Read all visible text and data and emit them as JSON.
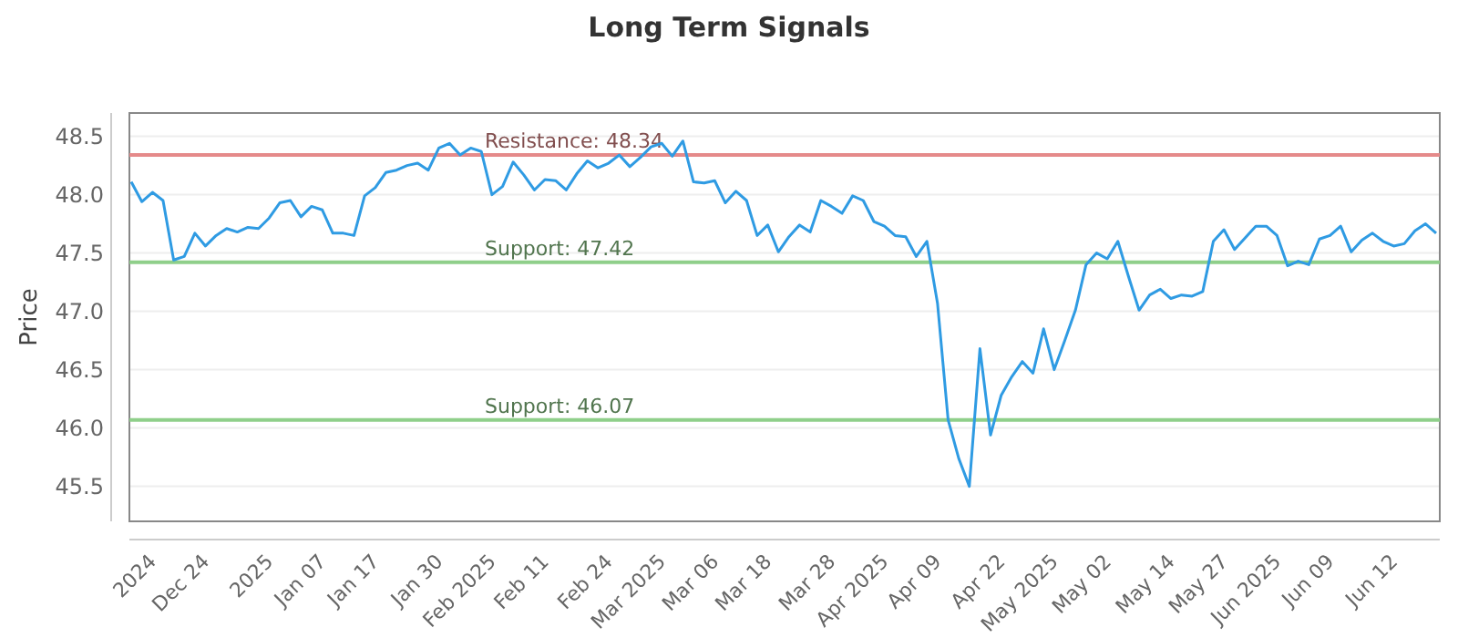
{
  "chart_data": {
    "type": "line",
    "title": "Long Term Signals",
    "ylabel": "Price",
    "categories": [
      null,
      null,
      "2024",
      null,
      null,
      null,
      null,
      "Dec 24",
      null,
      null,
      null,
      null,
      null,
      "2025",
      null,
      null,
      null,
      null,
      "Jan 07",
      null,
      null,
      null,
      null,
      "Jan 17",
      null,
      null,
      null,
      null,
      null,
      "Jan 30",
      null,
      null,
      null,
      null,
      "Feb 2025",
      null,
      null,
      null,
      null,
      "Feb 11",
      null,
      null,
      null,
      null,
      null,
      "Feb 24",
      null,
      null,
      null,
      null,
      "Mar 2025",
      null,
      null,
      null,
      null,
      "Mar 06",
      null,
      null,
      null,
      null,
      "Mar 18",
      null,
      null,
      null,
      null,
      null,
      "Mar 28",
      null,
      null,
      null,
      null,
      "Apr 2025",
      null,
      null,
      null,
      null,
      "Apr 09",
      null,
      null,
      null,
      null,
      null,
      "Apr 22",
      null,
      null,
      null,
      null,
      "May 2025",
      null,
      null,
      null,
      null,
      "May 02",
      null,
      null,
      null,
      null,
      null,
      "May 14",
      null,
      null,
      null,
      null,
      "May 27",
      null,
      null,
      null,
      null,
      "Jun 2025",
      null,
      null,
      null,
      null,
      "Jun 09",
      null,
      null,
      null,
      null,
      null,
      "Jun 12",
      null,
      null,
      null,
      null
    ],
    "series": [
      {
        "color": "#2f9be3",
        "values": [
          48.11,
          47.94,
          48.02,
          47.95,
          47.44,
          47.47,
          47.67,
          47.56,
          47.65,
          47.71,
          47.68,
          47.72,
          47.71,
          47.8,
          47.93,
          47.95,
          47.81,
          47.9,
          47.87,
          47.67,
          47.67,
          47.65,
          47.99,
          48.06,
          48.19,
          48.21,
          48.25,
          48.27,
          48.21,
          48.4,
          48.44,
          48.34,
          48.4,
          48.37,
          48.0,
          48.07,
          48.28,
          48.17,
          48.04,
          48.13,
          48.12,
          48.04,
          48.18,
          48.29,
          48.23,
          48.27,
          48.34,
          48.24,
          48.32,
          48.41,
          48.44,
          48.33,
          48.46,
          48.11,
          48.1,
          48.12,
          47.93,
          48.03,
          47.95,
          47.65,
          47.74,
          47.51,
          47.64,
          47.74,
          47.68,
          47.95,
          47.9,
          47.84,
          47.99,
          47.95,
          47.77,
          47.73,
          47.65,
          47.64,
          47.47,
          47.6,
          47.07,
          46.07,
          45.74,
          45.5,
          46.68,
          45.94,
          46.28,
          46.44,
          46.57,
          46.47,
          46.85,
          46.5,
          46.75,
          47.01,
          47.4,
          47.5,
          47.45,
          47.6,
          47.3,
          47.01,
          47.14,
          47.19,
          47.11,
          47.14,
          47.13,
          47.17,
          47.6,
          47.7,
          47.53,
          47.63,
          47.73,
          47.73,
          47.65,
          47.39,
          47.43,
          47.4,
          47.62,
          47.65,
          47.73,
          47.51,
          47.61,
          47.67,
          47.6,
          47.56,
          47.58,
          47.69,
          47.75,
          47.67
        ]
      }
    ],
    "ylim": [
      45.2,
      48.7
    ],
    "yticks": [
      {
        "value": 45.5,
        "label": "45.5"
      },
      {
        "value": 46,
        "label": "46.0"
      },
      {
        "value": 46.5,
        "label": "46.5"
      },
      {
        "value": 47,
        "label": "47.0"
      },
      {
        "value": 47.5,
        "label": "47.5"
      },
      {
        "value": 48,
        "label": "48.0"
      },
      {
        "value": 48.5,
        "label": "48.5"
      }
    ],
    "grid": "y",
    "marker": "none",
    "line_style": "solid",
    "ref_lines": [
      {
        "axis": "y",
        "value": 48.34,
        "label": "Resistance: 48.34",
        "color": "#e58a8a"
      },
      {
        "axis": "y",
        "value": 47.42,
        "label": "Support: 47.42",
        "color": "#8fcf8a"
      },
      {
        "axis": "y",
        "value": 46.07,
        "label": "Support: 46.07",
        "color": "#8fcf8a"
      }
    ]
  }
}
